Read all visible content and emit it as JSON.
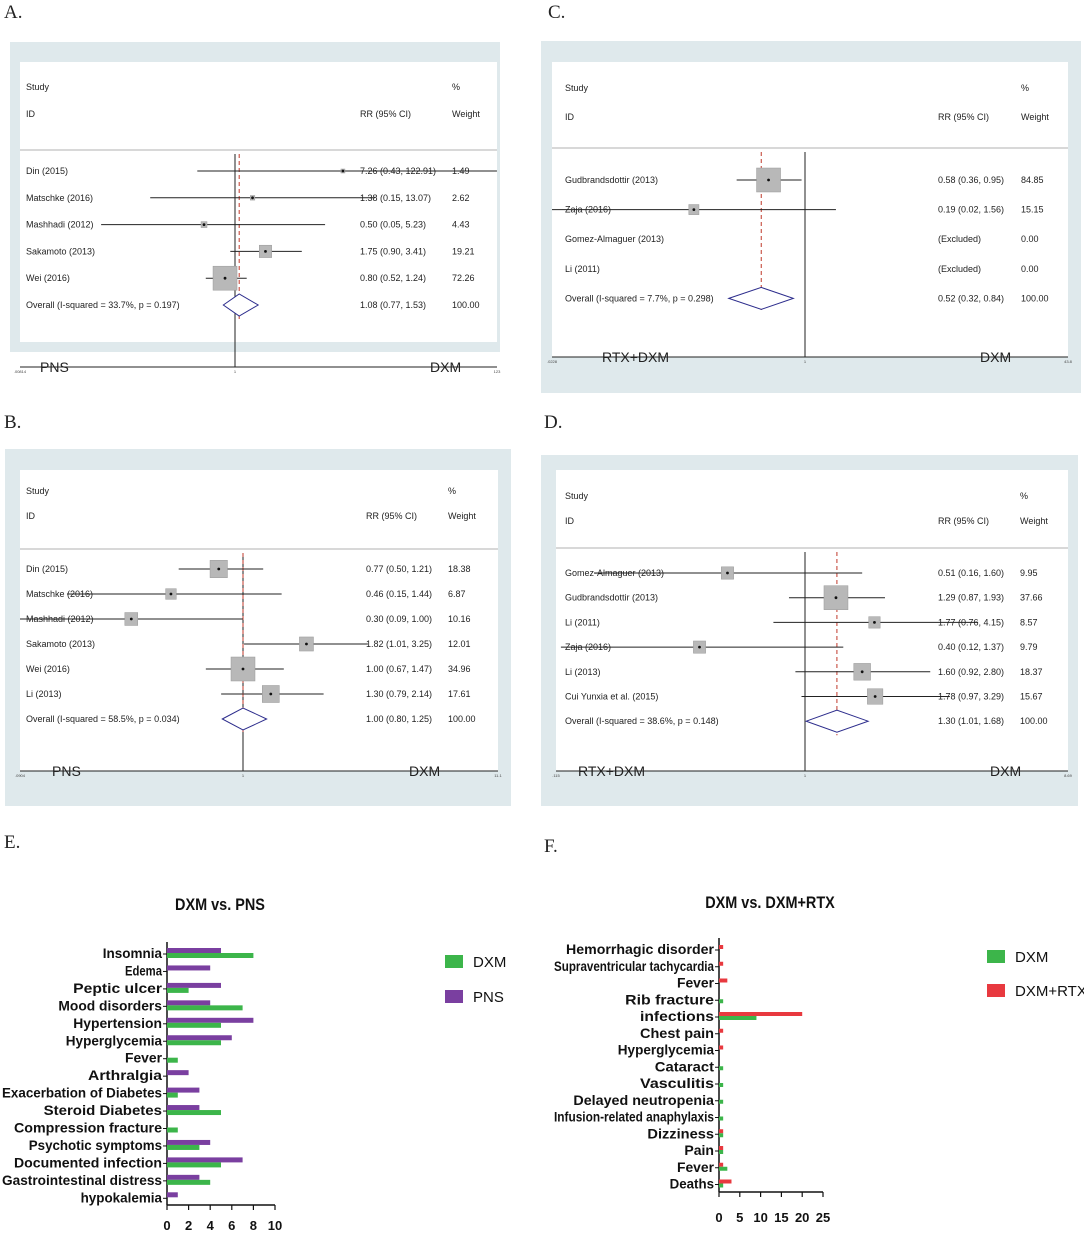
{
  "chart_data": [
    {
      "panel": "A.",
      "type": "forest",
      "header": {
        "study": "Study",
        "id": "ID",
        "rr": "RR (95% CI)",
        "pct": "%",
        "weight": "Weight"
      },
      "studies": [
        {
          "label": "Din (2015)",
          "rr": 7.26,
          "lo": 0.43,
          "hi": 122.91,
          "ci_text": "7.26 (0.43, 122.91)",
          "weight": "1.49"
        },
        {
          "label": "Matschke (2016)",
          "rr": 1.38,
          "lo": 0.15,
          "hi": 13.07,
          "ci_text": "1.38 (0.15, 13.07)",
          "weight": "2.62"
        },
        {
          "label": "Mashhadi (2012)",
          "rr": 0.5,
          "lo": 0.05,
          "hi": 5.23,
          "ci_text": "0.50 (0.05, 5.23)",
          "weight": "4.43"
        },
        {
          "label": "Sakamoto (2013)",
          "rr": 1.75,
          "lo": 0.9,
          "hi": 3.41,
          "ci_text": "1.75 (0.90, 3.41)",
          "weight": "19.21"
        },
        {
          "label": "Wei (2016)",
          "rr": 0.8,
          "lo": 0.52,
          "hi": 1.24,
          "ci_text": "0.80 (0.52, 1.24)",
          "weight": "72.26"
        }
      ],
      "overall": {
        "label": "Overall  (I-squared = 33.7%, p = 0.197)",
        "rr": 1.08,
        "lo": 0.77,
        "hi": 1.53,
        "ci_text": "1.08 (0.77, 1.53)",
        "weight": "100.00"
      },
      "xmin": 0.00814,
      "xmax": 123,
      "ticks": [
        {
          "v": 0.00814,
          "label": ".00814"
        },
        {
          "v": 1,
          "label": "1"
        },
        {
          "v": 123,
          "label": "123"
        }
      ],
      "left_label": "PNS",
      "right_label": "DXM"
    },
    {
      "panel": "B.",
      "type": "forest",
      "header": {
        "study": "Study",
        "id": "ID",
        "rr": "RR (95% CI)",
        "pct": "%",
        "weight": "Weight"
      },
      "studies": [
        {
          "label": "Din (2015)",
          "rr": 0.77,
          "lo": 0.5,
          "hi": 1.21,
          "ci_text": "0.77 (0.50, 1.21)",
          "weight": "18.38"
        },
        {
          "label": "Matschke (2016)",
          "rr": 0.46,
          "lo": 0.15,
          "hi": 1.44,
          "ci_text": "0.46 (0.15, 1.44)",
          "weight": "6.87"
        },
        {
          "label": "Mashhadi (2012)",
          "rr": 0.3,
          "lo": 0.09,
          "hi": 1.0,
          "ci_text": "0.30 (0.09, 1.00)",
          "weight": "10.16"
        },
        {
          "label": "Sakamoto (2013)",
          "rr": 1.82,
          "lo": 1.01,
          "hi": 3.25,
          "ci_text": "1.82 (1.01, 3.25)",
          "weight": "12.01"
        },
        {
          "label": "Wei (2016)",
          "rr": 1.0,
          "lo": 0.67,
          "hi": 1.47,
          "ci_text": "1.00 (0.67, 1.47)",
          "weight": "34.96"
        },
        {
          "label": "Li (2013)",
          "rr": 1.3,
          "lo": 0.79,
          "hi": 2.14,
          "ci_text": "1.30 (0.79, 2.14)",
          "weight": "17.61"
        }
      ],
      "overall": {
        "label": "Overall  (I-squared = 58.5%, p = 0.034)",
        "rr": 1.0,
        "lo": 0.8,
        "hi": 1.25,
        "ci_text": "1.00 (0.80, 1.25)",
        "weight": "100.00"
      },
      "xmin": 0.0904,
      "xmax": 11.1,
      "ticks": [
        {
          "v": 0.0904,
          "label": ".0904"
        },
        {
          "v": 1,
          "label": "1"
        },
        {
          "v": 11.1,
          "label": "11.1"
        }
      ],
      "left_label": "PNS",
      "right_label": "DXM"
    },
    {
      "panel": "C.",
      "type": "forest",
      "header": {
        "study": "Study",
        "id": "ID",
        "rr": "RR (95% CI)",
        "pct": "%",
        "weight": "Weight"
      },
      "studies": [
        {
          "label": "Gudbrandsdottir (2013)",
          "rr": 0.58,
          "lo": 0.36,
          "hi": 0.95,
          "ci_text": "0.58 (0.36, 0.95)",
          "weight": "84.85"
        },
        {
          "label": "Zaja (2016)",
          "rr": 0.19,
          "lo": 0.02,
          "hi": 1.56,
          "ci_text": "0.19 (0.02, 1.56)",
          "weight": "15.15"
        },
        {
          "label": "Gomez-Almaguer (2013)",
          "rr": null,
          "lo": null,
          "hi": null,
          "ci_text": "(Excluded)",
          "weight": "0.00"
        },
        {
          "label": "Li (2011)",
          "rr": null,
          "lo": null,
          "hi": null,
          "ci_text": "(Excluded)",
          "weight": "0.00"
        }
      ],
      "overall": {
        "label": "Overall  (I-squared = 7.7%, p = 0.298)",
        "rr": 0.52,
        "lo": 0.32,
        "hi": 0.84,
        "ci_text": "0.52 (0.32, 0.84)",
        "weight": "100.00"
      },
      "xmin": 0.0228,
      "xmax": 43.8,
      "ticks": [
        {
          "v": 0.0228,
          "label": ".0228"
        },
        {
          "v": 1,
          "label": "1"
        },
        {
          "v": 43.8,
          "label": "43.8"
        }
      ],
      "left_label": "RTX+DXM",
      "right_label": "DXM"
    },
    {
      "panel": "D.",
      "type": "forest",
      "header": {
        "study": "Study",
        "id": "ID",
        "rr": "RR (95% CI)",
        "pct": "%",
        "weight": "Weight"
      },
      "studies": [
        {
          "label": "Gomez-Almaguer (2013)",
          "rr": 0.51,
          "lo": 0.16,
          "hi": 1.6,
          "ci_text": "0.51 (0.16, 1.60)",
          "weight": "9.95"
        },
        {
          "label": "Gudbrandsdottir (2013)",
          "rr": 1.29,
          "lo": 0.87,
          "hi": 1.93,
          "ci_text": "1.29 (0.87, 1.93)",
          "weight": "37.66"
        },
        {
          "label": "Li (2011)",
          "rr": 1.77,
          "lo": 0.76,
          "hi": 4.15,
          "ci_text": "1.77 (0.76, 4.15)",
          "weight": "8.57"
        },
        {
          "label": "Zaja (2016)",
          "rr": 0.4,
          "lo": 0.12,
          "hi": 1.37,
          "ci_text": "0.40 (0.12, 1.37)",
          "weight": "9.79"
        },
        {
          "label": "Li (2013)",
          "rr": 1.6,
          "lo": 0.92,
          "hi": 2.8,
          "ci_text": "1.60 (0.92, 2.80)",
          "weight": "18.37"
        },
        {
          "label": "Cui Yunxia et al. (2015)",
          "rr": 1.78,
          "lo": 0.97,
          "hi": 3.29,
          "ci_text": "1.78 (0.97, 3.29)",
          "weight": "15.67"
        }
      ],
      "overall": {
        "label": "Overall  (I-squared = 38.6%, p = 0.148)",
        "rr": 1.3,
        "lo": 1.01,
        "hi": 1.68,
        "ci_text": "1.30 (1.01, 1.68)",
        "weight": "100.00"
      },
      "xmin": 0.115,
      "xmax": 8.69,
      "ticks": [
        {
          "v": 0.115,
          "label": ".115"
        },
        {
          "v": 1,
          "label": "1"
        },
        {
          "v": 8.69,
          "label": "8.69"
        }
      ],
      "left_label": "RTX+DXM",
      "right_label": "DXM"
    },
    {
      "panel": "E.",
      "type": "bar",
      "orientation": "horizontal",
      "title": "DXM vs. PNS",
      "categories": [
        "Insomnia",
        "Edema",
        "Peptic ulcer",
        "Mood disorders",
        "Hypertension",
        "Hyperglycemia",
        "Fever",
        "Arthralgia",
        "Exacerbation of Diabetes",
        "Steroid Diabetes",
        "Compression fracture",
        "Psychotic symptoms",
        "Documented infection",
        "Gastrointestinal distress",
        "hypokalemia"
      ],
      "series": [
        {
          "name": "PNS",
          "color": "#7a3fa0",
          "values": [
            5,
            4,
            5,
            4,
            8,
            6,
            0,
            2,
            3,
            3,
            0,
            4,
            7,
            3,
            1
          ]
        },
        {
          "name": "DXM",
          "color": "#3cb54a",
          "values": [
            8,
            0,
            2,
            7,
            5,
            5,
            1,
            0,
            1,
            5,
            1,
            3,
            5,
            4,
            0
          ]
        }
      ],
      "legend_order": [
        "DXM",
        "PNS"
      ],
      "xlim": [
        0,
        10
      ],
      "xticks": [
        0,
        2,
        4,
        6,
        8,
        10
      ]
    },
    {
      "panel": "F.",
      "type": "bar",
      "orientation": "horizontal",
      "title": "DXM vs. DXM+RTX",
      "categories": [
        "Hemorrhagic disorder",
        "Supraventricular tachycardia",
        "Fever",
        "Rib fracture",
        "infections",
        "Chest pain",
        "Hyperglycemia",
        "Cataract",
        "Vasculitis",
        "Delayed neutropenia",
        "Infusion-related anaphylaxis",
        "Dizziness",
        "Pain",
        "Fever",
        "Deaths"
      ],
      "series": [
        {
          "name": "DXM+RTX",
          "color": "#e8393f",
          "values": [
            1,
            1,
            2,
            0,
            20,
            1,
            1,
            0,
            0,
            0,
            0,
            1,
            1,
            1,
            3
          ]
        },
        {
          "name": "DXM",
          "color": "#3cb54a",
          "values": [
            0,
            0,
            0,
            1,
            9,
            0,
            0,
            1,
            1,
            1,
            1,
            1,
            1,
            2,
            1
          ]
        }
      ],
      "legend_order": [
        "DXM",
        "DXM+RTX"
      ],
      "xlim": [
        0,
        25
      ],
      "xticks": [
        0,
        5,
        10,
        15,
        20,
        25
      ]
    }
  ]
}
